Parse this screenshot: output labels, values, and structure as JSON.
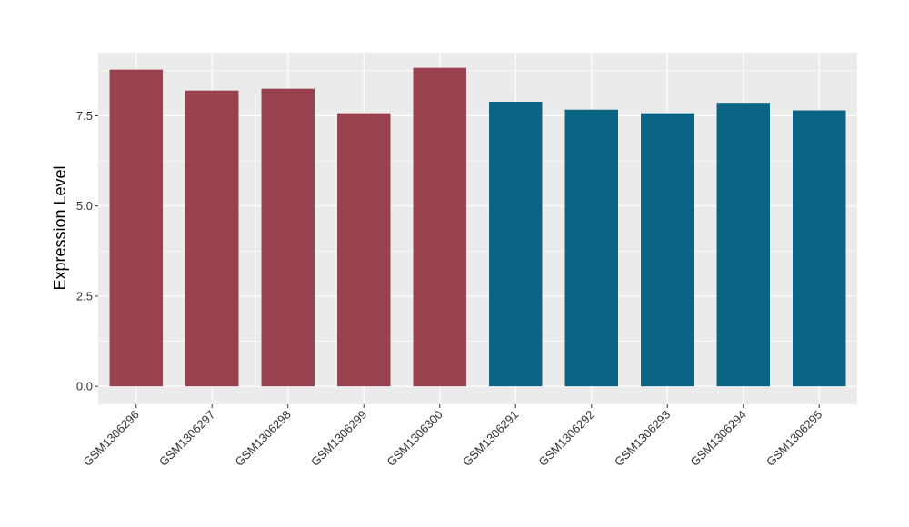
{
  "chart_data": {
    "type": "bar",
    "title": "",
    "xlabel": "",
    "ylabel": "Expression Level",
    "categories": [
      "GSM1306296",
      "GSM1306297",
      "GSM1306298",
      "GSM1306299",
      "GSM1306300",
      "GSM1306291",
      "GSM1306292",
      "GSM1306293",
      "GSM1306294",
      "GSM1306295"
    ],
    "values": [
      8.78,
      8.2,
      8.25,
      7.57,
      8.83,
      7.89,
      7.67,
      7.57,
      7.86,
      7.65
    ],
    "bar_colors": [
      "#99424f",
      "#99424f",
      "#99424f",
      "#99424f",
      "#99424f",
      "#0c6485",
      "#0c6485",
      "#0c6485",
      "#0c6485",
      "#0c6485"
    ],
    "ylim": [
      -0.5,
      9.25
    ],
    "yticks": [
      0.0,
      2.5,
      5.0,
      7.5
    ],
    "ytick_labels": [
      "0.0",
      "2.5",
      "5.0",
      "7.5"
    ],
    "grid": true,
    "panel_background": "#ebebeb",
    "grid_color": "#ffffff"
  }
}
